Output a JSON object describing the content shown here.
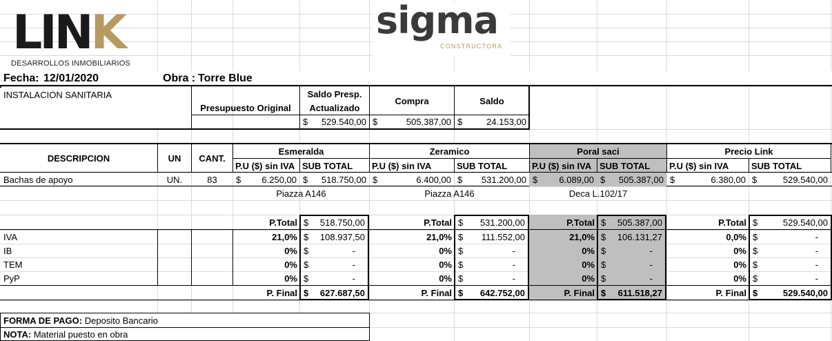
{
  "logos": {
    "link": {
      "wordmark": "LINK",
      "tagline": "DESARROLLOS INMOBILIARIOS"
    },
    "sigma": {
      "wordmark": "sigma",
      "tagline": "CONSTRUCTORA"
    }
  },
  "header": {
    "fecha_label": "Fecha:",
    "fecha_value": "12/01/2020",
    "obra_label": "Obra :",
    "obra_value": "Torre Blue"
  },
  "budget": {
    "title": "INSTALACION SANITARIA",
    "col_presupuesto": "Presupuesto Original",
    "col_saldo_presp_line1": "Saldo Presp.",
    "col_saldo_presp_line2": "Actualizado",
    "col_compra": "Compra",
    "col_saldo": "Saldo",
    "currency": "$",
    "saldo_presp_value": "529.540,00",
    "compra_value": "505.387,00",
    "saldo_value": "24.153,00"
  },
  "table": {
    "col_descripcion": "DESCRIPCION",
    "col_un": "UN",
    "col_cant": "CANT.",
    "pu_label": "P.U ($) sin IVA",
    "subtotal_label": "SUB TOTAL",
    "currency": "$",
    "suppliers": [
      {
        "name": "Esmeralda",
        "pu": "6.250,00",
        "subtotal": "518.750,00",
        "model": "Piazza A146",
        "ptotal": "518.750,00",
        "iva_pct": "21,0%",
        "iva": "108.937,50",
        "ib_pct": "0%",
        "tem_pct": "0%",
        "pyp_pct": "0%",
        "pfinal": "627.687,50"
      },
      {
        "name": "Zeramico",
        "pu": "6.400,00",
        "subtotal": "531.200,00",
        "model": "Piazza A146",
        "ptotal": "531.200,00",
        "iva_pct": "21,0%",
        "iva": "111.552,00",
        "ib_pct": "0%",
        "tem_pct": "0%",
        "pyp_pct": "0%",
        "pfinal": "642.752,00"
      },
      {
        "name": "Poral saci",
        "pu": "6.089,00",
        "subtotal": "505.387,00",
        "model": "Deca L.102/17",
        "ptotal": "505.387,00",
        "iva_pct": "21,0%",
        "iva": "106.131,27",
        "ib_pct": "0%",
        "tem_pct": "0%",
        "pyp_pct": "0%",
        "pfinal": "611.518,27"
      },
      {
        "name": "Precio Link",
        "pu": "6.380,00",
        "subtotal": "529.540,00",
        "model": "",
        "ptotal": "529.540,00",
        "iva_pct": "0,0%",
        "iva": "-",
        "ib_pct": "0%",
        "tem_pct": "0%",
        "pyp_pct": "0%",
        "pfinal": "529.540,00"
      }
    ],
    "item": {
      "descripcion": "Bachas de apoyo",
      "un": "UN.",
      "cant": "83"
    },
    "dash": "-",
    "ptotal_label": "P.Total",
    "pfinal_label": "P. Final",
    "tax_rows": [
      "IVA",
      "IB",
      "TEM",
      "PyP"
    ]
  },
  "footer": {
    "forma_pago_label": "FORMA DE PAGO:",
    "forma_pago_value": "Deposito Bancario",
    "nota_label": "NOTA:",
    "nota_value": "Material puesto en obra"
  }
}
